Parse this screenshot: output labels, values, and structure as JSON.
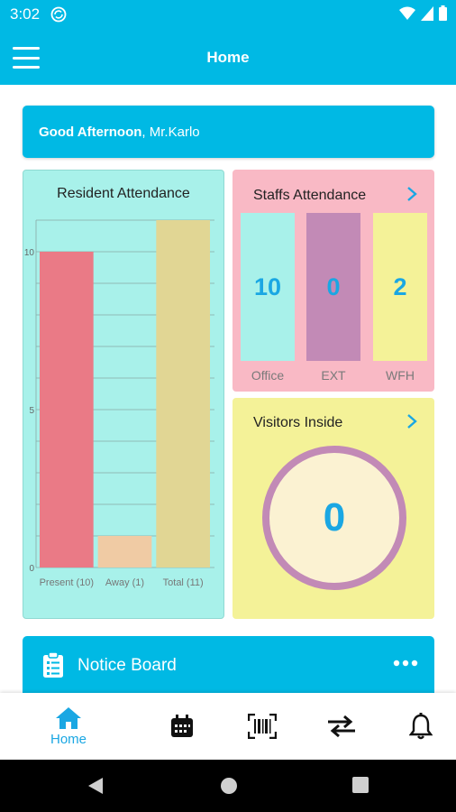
{
  "status_bar": {
    "time": "3:02"
  },
  "app_bar": {
    "title": "Home"
  },
  "greeting": {
    "salutation": "Good Afternoon",
    "separator": ", ",
    "name": "Mr.Karlo"
  },
  "resident_attendance": {
    "title": "Resident Attendance",
    "chart_data": {
      "type": "bar",
      "categories": [
        "Present (10)",
        "Away (1)",
        "Total (11)"
      ],
      "values": [
        10,
        1,
        11
      ],
      "colors": [
        "#ea7a86",
        "#f0cba4",
        "#e1d694"
      ],
      "title": "Resident Attendance",
      "xlabel": "",
      "ylabel": "",
      "ylim": [
        0,
        11
      ],
      "yticks": [
        "0",
        "5",
        "10"
      ],
      "grid": true
    }
  },
  "staffs_attendance": {
    "title": "Staffs Attendance",
    "items": [
      {
        "label": "Office",
        "value": "10",
        "color": "#a8f1ea"
      },
      {
        "label": "EXT",
        "value": "0",
        "color": "#c28ab6"
      },
      {
        "label": "WFH",
        "value": "2",
        "color": "#f4f298"
      }
    ]
  },
  "visitors_inside": {
    "title": "Visitors Inside",
    "count": "0"
  },
  "notice_board": {
    "title": "Notice Board"
  },
  "bottom_nav": {
    "items": [
      {
        "label": "Home",
        "icon": "home-icon",
        "active": true
      },
      {
        "icon": "calendar-icon"
      },
      {
        "icon": "barcode-scan-icon"
      },
      {
        "icon": "swap-arrows-icon"
      },
      {
        "icon": "bell-icon"
      }
    ]
  },
  "colors": {
    "primary": "#00b9e4",
    "accent_text": "#1aa7e3"
  }
}
